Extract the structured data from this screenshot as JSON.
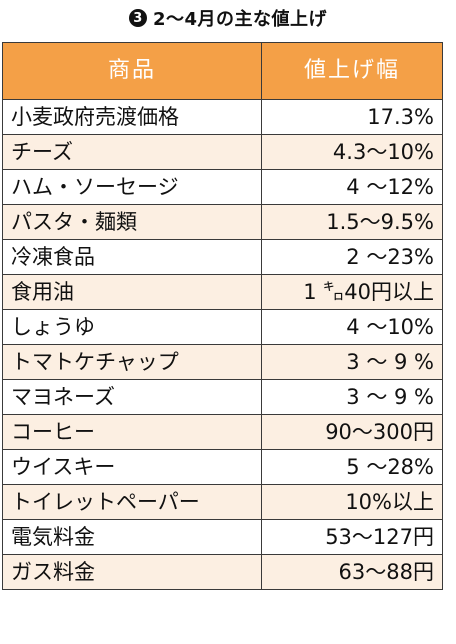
{
  "title": {
    "badge": "3",
    "text": "2～4月の主な値上げ"
  },
  "table": {
    "headers": {
      "item": "商品",
      "increase": "値上げ幅"
    },
    "rows": [
      {
        "item": "小麦政府売渡価格",
        "increase": "17.3%"
      },
      {
        "item": "チーズ",
        "increase": "4.3～10%"
      },
      {
        "item": "ハム・ソーセージ",
        "increase": "4 ～12%"
      },
      {
        "item": "パスタ・麺類",
        "increase": "1.5～9.5%"
      },
      {
        "item": "冷凍食品",
        "increase": "2 ～23%"
      },
      {
        "item": "食用油",
        "increase": "1 ㌔40円以上"
      },
      {
        "item": "しょうゆ",
        "increase": "4 ～10%"
      },
      {
        "item": "トマトケチャップ",
        "increase": "3 ～ 9 %"
      },
      {
        "item": "マヨネーズ",
        "increase": "3 ～ 9 %"
      },
      {
        "item": "コーヒー",
        "increase": "90～300円"
      },
      {
        "item": "ウイスキー",
        "increase": "5 ～28%"
      },
      {
        "item": "トイレットペーパー",
        "increase": "10%以上"
      },
      {
        "item": "電気料金",
        "increase": "53～127円"
      },
      {
        "item": "ガス料金",
        "increase": "63～88円"
      }
    ]
  },
  "colors": {
    "header_bg": "#f4a047",
    "alt_row_bg": "#fcefe2",
    "border": "#3a3a3a"
  }
}
